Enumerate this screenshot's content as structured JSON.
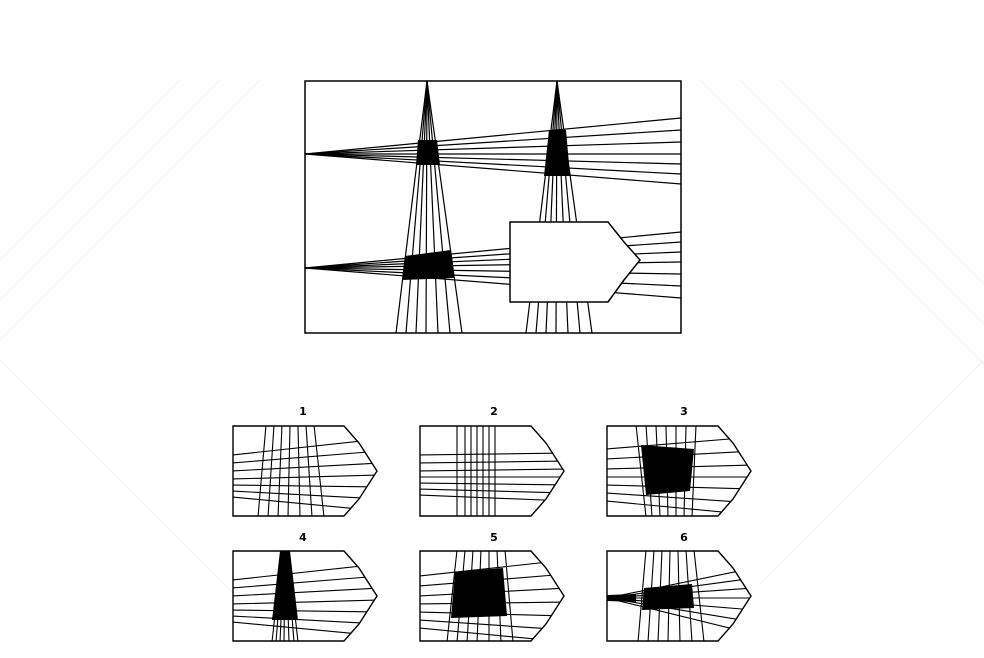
{
  "question": {
    "description": "puzzle-figure-with-hidden-region",
    "colors": {
      "ink": "#000000",
      "paper": "#ffffff",
      "watermark": "#ececec"
    }
  },
  "options": [
    {
      "label": "1",
      "verticals": "spread",
      "horizontals": "spread",
      "fill": "none"
    },
    {
      "label": "2",
      "verticals": "parallel",
      "horizontals": "parallel",
      "fill": "none"
    },
    {
      "label": "3",
      "verticals": "spread",
      "horizontals": "spread",
      "fill": "large-quad"
    },
    {
      "label": "4",
      "verticals": "converging",
      "horizontals": "spread",
      "fill": "narrow-beam"
    },
    {
      "label": "5",
      "verticals": "spread",
      "horizontals": "spread",
      "fill": "large-quad"
    },
    {
      "label": "6",
      "verticals": "spread",
      "horizontals": "converging-left",
      "fill": "beam-left"
    }
  ]
}
